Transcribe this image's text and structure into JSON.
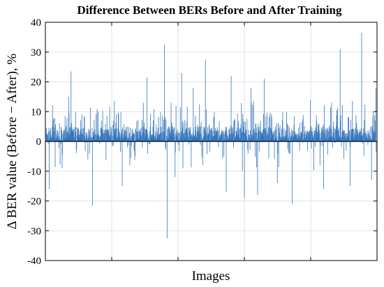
{
  "chart_data": {
    "type": "bar",
    "title": "Difference Between BERs Before and After Training",
    "xlabel": "Images",
    "ylabel": "Δ BER value (Before − After), %",
    "ylim": [
      -40,
      40
    ],
    "yticks": [
      -40,
      -30,
      -20,
      -10,
      0,
      10,
      20,
      30,
      40
    ],
    "xticks_count": 4,
    "grid": true,
    "num_points": 1000,
    "series_color": "#2a6fba",
    "notable_values": [
      {
        "x": 9,
        "y": -16
      },
      {
        "x": 48,
        "y": -9
      },
      {
        "x": 68,
        "y": 15
      },
      {
        "x": 75,
        "y": 23.5
      },
      {
        "x": 140,
        "y": -21.5
      },
      {
        "x": 230,
        "y": -15
      },
      {
        "x": 305,
        "y": 21.5
      },
      {
        "x": 358,
        "y": 32.5
      },
      {
        "x": 366,
        "y": -32.5
      },
      {
        "x": 390,
        "y": -12
      },
      {
        "x": 410,
        "y": 23
      },
      {
        "x": 445,
        "y": 18
      },
      {
        "x": 482,
        "y": 27.5
      },
      {
        "x": 545,
        "y": -17
      },
      {
        "x": 560,
        "y": 22
      },
      {
        "x": 600,
        "y": -19
      },
      {
        "x": 620,
        "y": 18
      },
      {
        "x": 640,
        "y": -18
      },
      {
        "x": 660,
        "y": 21
      },
      {
        "x": 700,
        "y": -14
      },
      {
        "x": 745,
        "y": -21
      },
      {
        "x": 800,
        "y": 14
      },
      {
        "x": 840,
        "y": -16
      },
      {
        "x": 890,
        "y": 31
      },
      {
        "x": 920,
        "y": -15
      },
      {
        "x": 955,
        "y": 36.5
      },
      {
        "x": 985,
        "y": -13
      },
      {
        "x": 998,
        "y": 18
      }
    ]
  }
}
